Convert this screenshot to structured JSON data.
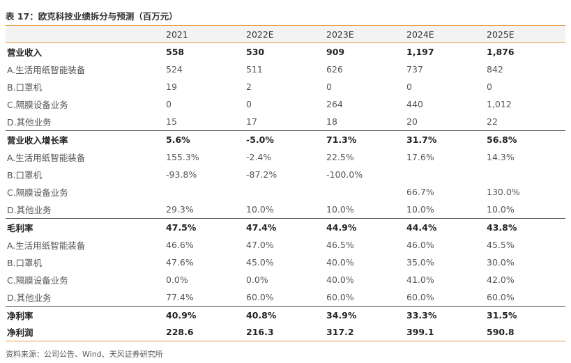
{
  "title": "表 17：欧克科技业绩拆分与预测（百万元）",
  "columns": [
    "",
    "2021",
    "2022E",
    "2023E",
    "2024E",
    "2025E"
  ],
  "rows": [
    {
      "label": "营业收入",
      "values": [
        "558",
        "530",
        "909",
        "1,197",
        "1,876"
      ],
      "bold": true,
      "group_start": false
    },
    {
      "label": "A.生活用纸智能装备",
      "values": [
        "524",
        "511",
        "626",
        "737",
        "842"
      ],
      "bold": false,
      "group_start": false
    },
    {
      "label": "B.口罩机",
      "values": [
        "19",
        "2",
        "0",
        "0",
        "0"
      ],
      "bold": false,
      "group_start": false
    },
    {
      "label": "C.隔膜设备业务",
      "values": [
        "0",
        "0",
        "264",
        "440",
        "1,012"
      ],
      "bold": false,
      "group_start": false
    },
    {
      "label": "D.其他业务",
      "values": [
        "15",
        "17",
        "18",
        "20",
        "22"
      ],
      "bold": false,
      "group_start": false
    },
    {
      "label": "营业收入增长率",
      "values": [
        "5.6%",
        "-5.0%",
        "71.3%",
        "31.7%",
        "56.8%"
      ],
      "bold": true,
      "group_start": true
    },
    {
      "label": "A.生活用纸智能装备",
      "values": [
        "155.3%",
        "-2.4%",
        "22.5%",
        "17.6%",
        "14.3%"
      ],
      "bold": false,
      "group_start": false
    },
    {
      "label": "B.口罩机",
      "values": [
        "-93.8%",
        "-87.2%",
        "-100.0%",
        "",
        ""
      ],
      "bold": false,
      "group_start": false
    },
    {
      "label": "C.隔膜设备业务",
      "values": [
        "",
        "",
        "",
        "66.7%",
        "130.0%"
      ],
      "bold": false,
      "group_start": false
    },
    {
      "label": "D.其他业务",
      "values": [
        "29.3%",
        "10.0%",
        "10.0%",
        "10.0%",
        "10.0%"
      ],
      "bold": false,
      "group_start": false
    },
    {
      "label": "毛利率",
      "values": [
        "47.5%",
        "47.4%",
        "44.9%",
        "44.4%",
        "43.8%"
      ],
      "bold": true,
      "group_start": true
    },
    {
      "label": "A.生活用纸智能装备",
      "values": [
        "46.6%",
        "47.0%",
        "46.5%",
        "46.0%",
        "45.5%"
      ],
      "bold": false,
      "group_start": false
    },
    {
      "label": "B.口罩机",
      "values": [
        "47.6%",
        "45.0%",
        "40.0%",
        "35.0%",
        "30.0%"
      ],
      "bold": false,
      "group_start": false
    },
    {
      "label": "C.隔膜设备业务",
      "values": [
        "0.0%",
        "0.0%",
        "40.0%",
        "41.0%",
        "42.0%"
      ],
      "bold": false,
      "group_start": false
    },
    {
      "label": "D.其他业务",
      "values": [
        "77.4%",
        "60.0%",
        "60.0%",
        "60.0%",
        "60.0%"
      ],
      "bold": false,
      "group_start": false
    },
    {
      "label": "净利率",
      "values": [
        "40.9%",
        "40.8%",
        "34.9%",
        "33.3%",
        "31.5%"
      ],
      "bold": true,
      "group_start": true
    },
    {
      "label": "净利润",
      "values": [
        "228.6",
        "216.3",
        "317.2",
        "399.1",
        "590.8"
      ],
      "bold": true,
      "group_start": false
    }
  ],
  "source": "资料来源：公司公告、Wind、天风证券研究所"
}
